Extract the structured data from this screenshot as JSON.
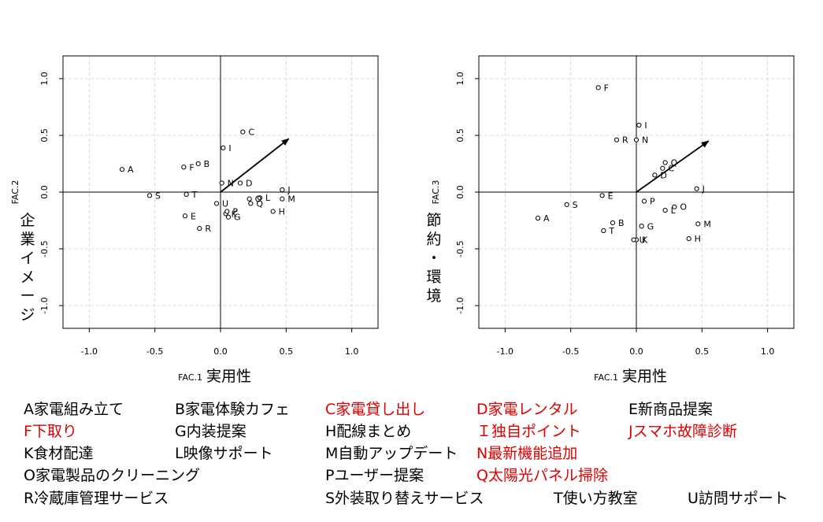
{
  "chart_data": [
    {
      "type": "scatter",
      "xlabel_code": "FAC.1",
      "xlabel": "実用性",
      "ylabel_code": "FAC.2",
      "ylabel": "企業イメージ",
      "xlim": [
        -1.2,
        1.2
      ],
      "ylim": [
        -1.2,
        1.2
      ],
      "xticks": [
        "-1.0",
        "-0.5",
        "0.0",
        "0.5",
        "1.0"
      ],
      "yticks": [
        "-1.0",
        "-0.5",
        "0.0",
        "0.5",
        "1.0"
      ],
      "grid": true,
      "arrow": {
        "x": 0.52,
        "y": 0.47
      },
      "points": [
        {
          "label": "A",
          "x": -0.75,
          "y": 0.2
        },
        {
          "label": "B",
          "x": -0.17,
          "y": 0.25
        },
        {
          "label": "C",
          "x": 0.17,
          "y": 0.53
        },
        {
          "label": "D",
          "x": 0.15,
          "y": 0.08
        },
        {
          "label": "E",
          "x": -0.27,
          "y": -0.21
        },
        {
          "label": "F",
          "x": -0.28,
          "y": 0.22
        },
        {
          "label": "G",
          "x": 0.06,
          "y": -0.22
        },
        {
          "label": "H",
          "x": 0.4,
          "y": -0.17
        },
        {
          "label": "I",
          "x": 0.02,
          "y": 0.39
        },
        {
          "label": "J",
          "x": 0.47,
          "y": 0.02
        },
        {
          "label": "K",
          "x": 0.04,
          "y": -0.19
        },
        {
          "label": "L",
          "x": 0.3,
          "y": -0.05
        },
        {
          "label": "M",
          "x": 0.47,
          "y": -0.06
        },
        {
          "label": "N",
          "x": 0.01,
          "y": 0.08
        },
        {
          "label": "O",
          "x": 0.22,
          "y": -0.06
        },
        {
          "label": "P",
          "x": 0.05,
          "y": -0.17
        },
        {
          "label": "Q",
          "x": 0.23,
          "y": -0.1
        },
        {
          "label": "R",
          "x": -0.16,
          "y": -0.32
        },
        {
          "label": "S",
          "x": -0.54,
          "y": -0.03
        },
        {
          "label": "T",
          "x": -0.26,
          "y": -0.02
        },
        {
          "label": "U",
          "x": -0.03,
          "y": -0.1
        }
      ]
    },
    {
      "type": "scatter",
      "xlabel_code": "FAC.1",
      "xlabel": "実用性",
      "ylabel_code": "FAC.3",
      "ylabel": "節約・環境",
      "xlim": [
        -1.2,
        1.2
      ],
      "ylim": [
        -1.2,
        1.2
      ],
      "xticks": [
        "-1.0",
        "-0.5",
        "0.0",
        "0.5",
        "1.0"
      ],
      "yticks": [
        "-1.0",
        "-0.5",
        "0.0",
        "0.5",
        "1.0"
      ],
      "grid": true,
      "arrow": {
        "x": 0.55,
        "y": 0.45
      },
      "points": [
        {
          "label": "A",
          "x": -0.75,
          "y": -0.23
        },
        {
          "label": "B",
          "x": -0.18,
          "y": -0.27
        },
        {
          "label": "C",
          "x": 0.2,
          "y": 0.21
        },
        {
          "label": "D",
          "x": 0.14,
          "y": 0.15
        },
        {
          "label": "E",
          "x": -0.26,
          "y": -0.03
        },
        {
          "label": "F",
          "x": -0.29,
          "y": 0.92
        },
        {
          "label": "G",
          "x": 0.04,
          "y": -0.3
        },
        {
          "label": "H",
          "x": 0.4,
          "y": -0.41
        },
        {
          "label": "I",
          "x": 0.02,
          "y": 0.59
        },
        {
          "label": "J",
          "x": 0.46,
          "y": 0.03
        },
        {
          "label": "K",
          "x": 0.0,
          "y": -0.42
        },
        {
          "label": "L",
          "x": 0.22,
          "y": -0.16
        },
        {
          "label": "M",
          "x": 0.47,
          "y": -0.28
        },
        {
          "label": "N",
          "x": 0.0,
          "y": 0.46
        },
        {
          "label": "O",
          "x": 0.29,
          "y": -0.13
        },
        {
          "label": "P",
          "x": 0.06,
          "y": -0.08
        },
        {
          "label": "Q",
          "x": 0.22,
          "y": 0.26
        },
        {
          "label": "R",
          "x": -0.15,
          "y": 0.46
        },
        {
          "label": "S",
          "x": -0.53,
          "y": -0.11
        },
        {
          "label": "T",
          "x": -0.25,
          "y": -0.34
        },
        {
          "label": "U",
          "x": -0.02,
          "y": -0.42
        }
      ]
    }
  ],
  "legend": {
    "highlight_color": "#e00000",
    "items": [
      {
        "text": "A家電組み立て",
        "red": false
      },
      {
        "text": "B家電体験カフェ",
        "red": false
      },
      {
        "text": "C家電貸し出し",
        "red": true
      },
      {
        "text": "D家電レンタル",
        "red": true
      },
      {
        "text": "E新商品提案",
        "red": false
      },
      {
        "text": "F下取り",
        "red": true
      },
      {
        "text": "G内装提案",
        "red": false
      },
      {
        "text": "H配線まとめ",
        "red": false
      },
      {
        "text": "Ｉ独自ポイント",
        "red": true
      },
      {
        "text": "Jスマホ故障診断",
        "red": true
      },
      {
        "text": "K食材配達",
        "red": false
      },
      {
        "text": "L映像サポート",
        "red": false
      },
      {
        "text": "M自動アップデート",
        "red": false
      },
      {
        "text": "N最新機能追加",
        "red": true
      },
      {
        "text": "O家電製品のクリーニング",
        "red": false
      },
      {
        "text": "Pユーザー提案",
        "red": false
      },
      {
        "text": "Q太陽光パネル掃除",
        "red": true
      },
      {
        "text": "R冷蔵庫管理サービス",
        "red": false
      },
      {
        "text": "S外装取り替えサービス",
        "red": false
      },
      {
        "text": "T使い方教室",
        "red": false
      },
      {
        "text": "U訪問サポート",
        "red": false
      }
    ]
  }
}
